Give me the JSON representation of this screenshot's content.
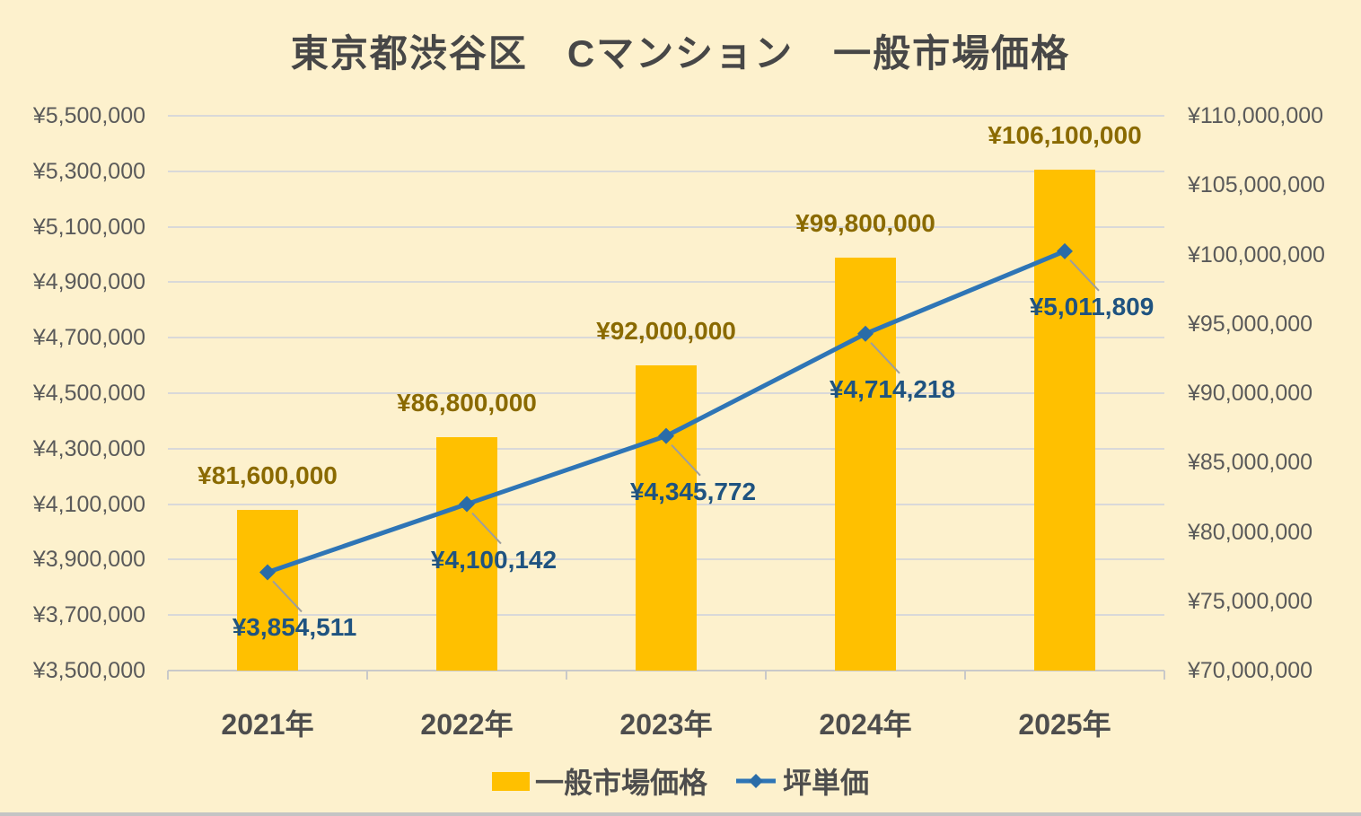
{
  "title": "東京都渋谷区　Cマンション　一般市場価格",
  "colors": {
    "background": "#FDF1CD",
    "bar": "#FFC000",
    "bar_label": "#8A6A00",
    "line": "#2E75B6",
    "marker": "#2A6CA8",
    "line_label": "#1F5380",
    "axis_text": "#5A5A5A",
    "category_text": "#4D4D4D",
    "title_text": "#474747",
    "legend_text": "#4D4D4D",
    "gridline": "#D9D9D9",
    "axis_line": "#C9C9C9",
    "leader": "#9E9E9E",
    "bottom_strip": "#C4C4C4"
  },
  "chart_data": {
    "type": "combo-bar-line",
    "categories": [
      "2021年",
      "2022年",
      "2023年",
      "2024年",
      "2025年"
    ],
    "series": [
      {
        "name": "一般市場価格",
        "chart": "bar",
        "axis": "right",
        "values": [
          81600000,
          86800000,
          92000000,
          99800000,
          106100000
        ],
        "data_labels": [
          "¥81,600,000",
          "¥86,800,000",
          "¥92,000,000",
          "¥99,800,000",
          "¥106,100,000"
        ]
      },
      {
        "name": "坪単価",
        "chart": "line",
        "axis": "left",
        "values": [
          3854511,
          4100142,
          4345772,
          4714218,
          5011809
        ],
        "data_labels": [
          "¥3,854,511",
          "¥4,100,142",
          "¥4,345,772",
          "¥4,714,218",
          "¥5,011,809"
        ]
      }
    ],
    "left_axis": {
      "min": 3500000,
      "max": 5500000,
      "step": 200000,
      "tick_labels": [
        "¥5,500,000",
        "¥5,300,000",
        "¥5,100,000",
        "¥4,900,000",
        "¥4,700,000",
        "¥4,500,000",
        "¥4,300,000",
        "¥4,100,000",
        "¥3,900,000",
        "¥3,700,000",
        "¥3,500,000"
      ]
    },
    "right_axis": {
      "min": 70000000,
      "max": 110000000,
      "step": 5000000,
      "tick_labels": [
        "¥110,000,000",
        "¥105,000,000",
        "¥100,000,000",
        "¥95,000,000",
        "¥90,000,000",
        "¥85,000,000",
        "¥80,000,000",
        "¥75,000,000",
        "¥70,000,000"
      ]
    },
    "grid": "horizontal",
    "legend_position": "bottom"
  }
}
